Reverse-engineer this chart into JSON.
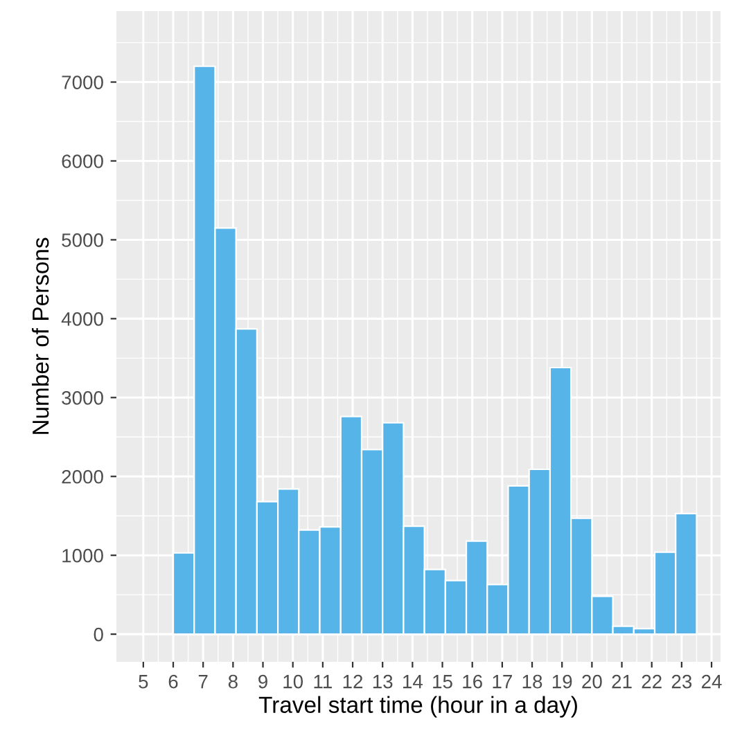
{
  "chart_data": {
    "type": "histogram",
    "xlabel": "Travel start time (hour in a day)",
    "ylabel": "Number of Persons",
    "bins": [
      6,
      6.7,
      7.4,
      8.1,
      8.8,
      9.5,
      10.2,
      10.9,
      11.6,
      12.3,
      13,
      13.7,
      14.4,
      15.1,
      15.8,
      16.5,
      17.2,
      17.9,
      18.6,
      19.3,
      20,
      20.7,
      21.4,
      22.1,
      22.8,
      23.5
    ],
    "values": [
      1030,
      7200,
      5150,
      3870,
      1680,
      1840,
      1320,
      1360,
      2760,
      2340,
      2680,
      1370,
      820,
      680,
      1180,
      630,
      1880,
      2090,
      3380,
      1470,
      480,
      100,
      70,
      1040,
      1530
    ],
    "color": "#56b4e9",
    "xlim": [
      4.1,
      24.3
    ],
    "xticks": [
      5,
      6,
      7,
      8,
      9,
      10,
      11,
      12,
      13,
      14,
      15,
      16,
      17,
      18,
      19,
      20,
      21,
      22,
      23,
      24
    ],
    "ylim": [
      -350,
      7900
    ],
    "yticks": [
      0,
      1000,
      2000,
      3000,
      4000,
      5000,
      6000,
      7000
    ],
    "grid": true
  }
}
